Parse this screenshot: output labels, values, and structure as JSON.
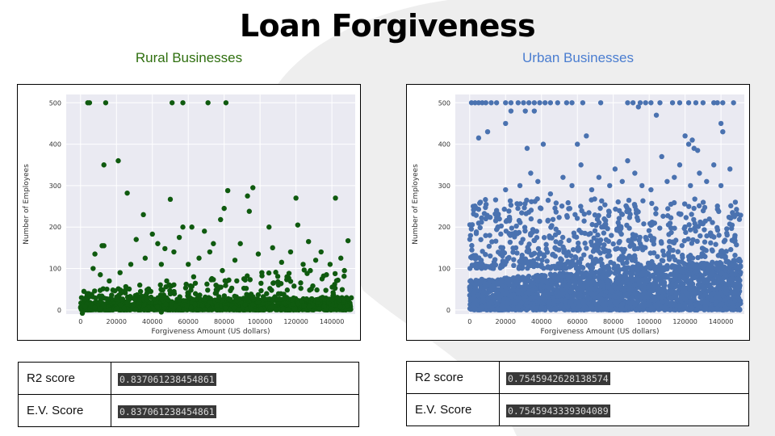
{
  "title": "Loan Forgiveness",
  "colors": {
    "rural": "#0f5a0f",
    "urban": "#4a72b0",
    "plot_bg": "#eaeaf2",
    "shape": "#eeeeee"
  },
  "panels": {
    "rural": {
      "subtitle": "Rural Businesses",
      "r2_label": "R2 score",
      "r2_value": "0.837061238454861",
      "ev_label": "E.V. Score",
      "ev_value": "0.837061238454861"
    },
    "urban": {
      "subtitle": "Urban Businesses",
      "r2_label": "R2 score",
      "r2_value": "0.7545942628138574",
      "ev_label": "E.V. Score",
      "ev_value": "0.7545943339304089"
    }
  },
  "chart_data": [
    {
      "type": "scatter",
      "xlabel": "Forgiveness Amount (US dollars)",
      "ylabel": "Number of Employees",
      "xlim": [
        -8000,
        153000
      ],
      "ylim": [
        -10,
        520
      ],
      "xticks": [
        "0",
        "20000",
        "40000",
        "60000",
        "80000",
        "100000",
        "120000",
        "140000"
      ],
      "yticks": [
        "0",
        "100",
        "200",
        "300",
        "400",
        "500"
      ],
      "color": "#0f5a0f",
      "grid": true,
      "points": [
        [
          4000,
          500
        ],
        [
          5000,
          500
        ],
        [
          14000,
          500
        ],
        [
          51000,
          500
        ],
        [
          57000,
          500
        ],
        [
          71000,
          500
        ],
        [
          81000,
          500
        ],
        [
          13000,
          350
        ],
        [
          21000,
          360
        ],
        [
          26000,
          282
        ],
        [
          35000,
          230
        ],
        [
          50000,
          267
        ],
        [
          82000,
          288
        ],
        [
          93000,
          275
        ],
        [
          96000,
          295
        ],
        [
          120000,
          270
        ],
        [
          142000,
          270
        ],
        [
          31000,
          170
        ],
        [
          40000,
          183
        ],
        [
          43000,
          160
        ],
        [
          47000,
          148
        ],
        [
          55000,
          175
        ],
        [
          57000,
          200
        ],
        [
          62000,
          200
        ],
        [
          69000,
          190
        ],
        [
          74000,
          160
        ],
        [
          78000,
          218
        ],
        [
          80000,
          245
        ],
        [
          89000,
          160
        ],
        [
          94000,
          238
        ],
        [
          105000,
          200
        ],
        [
          107000,
          150
        ],
        [
          121000,
          205
        ],
        [
          127000,
          165
        ],
        [
          134000,
          140
        ],
        [
          149000,
          167
        ],
        [
          7000,
          100
        ],
        [
          8000,
          135
        ],
        [
          12000,
          155
        ],
        [
          13000,
          155
        ],
        [
          11000,
          85
        ],
        [
          16000,
          70
        ],
        [
          22000,
          90
        ],
        [
          28000,
          110
        ],
        [
          36000,
          125
        ],
        [
          45000,
          110
        ],
        [
          52000,
          140
        ],
        [
          60000,
          110
        ],
        [
          66000,
          125
        ],
        [
          72000,
          140
        ],
        [
          86000,
          120
        ],
        [
          99000,
          135
        ],
        [
          112000,
          115
        ],
        [
          117000,
          140
        ],
        [
          124000,
          110
        ],
        [
          131000,
          120
        ],
        [
          139000,
          110
        ],
        [
          145000,
          125
        ],
        [
          18000,
          48
        ],
        [
          33000,
          60
        ],
        [
          48000,
          70
        ],
        [
          63000,
          80
        ],
        [
          79000,
          95
        ],
        [
          91000,
          75
        ],
        [
          101000,
          90
        ],
        [
          115000,
          80
        ],
        [
          128000,
          95
        ],
        [
          137000,
          85
        ],
        [
          147000,
          95
        ],
        [
          1000,
          -8
        ],
        [
          45000,
          -5
        ]
      ],
      "dense_band": {
        "x_from": 0,
        "x_to": 151000,
        "y_from": 0,
        "y_to": 30
      }
    },
    {
      "type": "scatter",
      "xlabel": "Forgiveness Amount (US dollars)",
      "ylabel": "Number of Employees",
      "xlim": [
        -8000,
        153000
      ],
      "ylim": [
        -10,
        520
      ],
      "xticks": [
        "0",
        "20000",
        "40000",
        "60000",
        "80000",
        "100000",
        "120000",
        "140000"
      ],
      "yticks": [
        "0",
        "100",
        "200",
        "300",
        "400",
        "500"
      ],
      "color": "#4a72b0",
      "grid": true,
      "points": [
        [
          1000,
          500
        ],
        [
          3000,
          500
        ],
        [
          5000,
          500
        ],
        [
          7000,
          500
        ],
        [
          9000,
          500
        ],
        [
          12000,
          500
        ],
        [
          15000,
          500
        ],
        [
          20000,
          500
        ],
        [
          23000,
          500
        ],
        [
          27000,
          500
        ],
        [
          30000,
          500
        ],
        [
          33000,
          500
        ],
        [
          36000,
          500
        ],
        [
          39000,
          500
        ],
        [
          42000,
          500
        ],
        [
          45000,
          500
        ],
        [
          49000,
          500
        ],
        [
          54000,
          500
        ],
        [
          57000,
          500
        ],
        [
          63000,
          500
        ],
        [
          73000,
          500
        ],
        [
          88000,
          500
        ],
        [
          91000,
          500
        ],
        [
          95000,
          500
        ],
        [
          98000,
          500
        ],
        [
          101000,
          500
        ],
        [
          106000,
          500
        ],
        [
          113000,
          500
        ],
        [
          117000,
          500
        ],
        [
          122000,
          500
        ],
        [
          126000,
          500
        ],
        [
          130000,
          500
        ],
        [
          136000,
          500
        ],
        [
          138000,
          500
        ],
        [
          141000,
          500
        ],
        [
          147000,
          500
        ],
        [
          20000,
          450
        ],
        [
          23000,
          480
        ],
        [
          31000,
          480
        ],
        [
          36000,
          480
        ],
        [
          5000,
          415
        ],
        [
          10000,
          430
        ],
        [
          32000,
          390
        ],
        [
          41000,
          400
        ],
        [
          60000,
          400
        ],
        [
          65000,
          420
        ],
        [
          94000,
          490
        ],
        [
          104000,
          470
        ],
        [
          120000,
          420
        ],
        [
          124000,
          410
        ],
        [
          125000,
          390
        ],
        [
          127000,
          385
        ],
        [
          140000,
          450
        ],
        [
          141000,
          430
        ],
        [
          122000,
          400
        ],
        [
          2000,
          250
        ],
        [
          6000,
          260
        ],
        [
          9000,
          220
        ],
        [
          15000,
          240
        ],
        [
          20000,
          290
        ],
        [
          28000,
          300
        ],
        [
          34000,
          330
        ],
        [
          38000,
          310
        ],
        [
          45000,
          280
        ],
        [
          52000,
          320
        ],
        [
          57000,
          300
        ],
        [
          62000,
          350
        ],
        [
          68000,
          290
        ],
        [
          72000,
          320
        ],
        [
          78000,
          300
        ],
        [
          81000,
          340
        ],
        [
          85000,
          310
        ],
        [
          88000,
          360
        ],
        [
          92000,
          330
        ],
        [
          96000,
          300
        ],
        [
          101000,
          290
        ],
        [
          107000,
          370
        ],
        [
          110000,
          310
        ],
        [
          114000,
          320
        ],
        [
          117000,
          350
        ],
        [
          123000,
          300
        ],
        [
          128000,
          330
        ],
        [
          132000,
          310
        ],
        [
          136000,
          350
        ],
        [
          140000,
          300
        ],
        [
          145000,
          340
        ],
        [
          148000,
          260
        ]
      ],
      "dense_band": {
        "x_from": 0,
        "x_to": 151000,
        "y_from": 0,
        "y_to": 120
      }
    }
  ]
}
